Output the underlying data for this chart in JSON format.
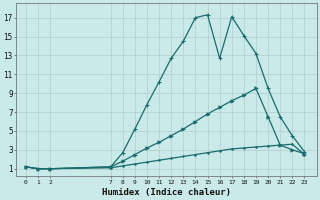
{
  "xlabel": "Humidex (Indice chaleur)",
  "bg_color": "#caeaea",
  "grid_color": "#b8d4d4",
  "line_color": "#1a6b6b",
  "x_ticks": [
    0,
    1,
    2,
    7,
    8,
    9,
    10,
    11,
    12,
    13,
    14,
    15,
    16,
    17,
    18,
    19,
    20,
    21,
    22,
    23
  ],
  "y_ticks": [
    1,
    3,
    5,
    7,
    9,
    11,
    13,
    15,
    17
  ],
  "ylim": [
    0.2,
    18.5
  ],
  "xlim": [
    -0.8,
    24.0
  ],
  "line1_x": [
    0,
    1,
    2,
    7,
    8,
    9,
    10,
    11,
    12,
    13,
    14,
    15,
    16,
    17,
    18,
    19,
    20,
    21,
    22,
    23
  ],
  "line1_y": [
    1.2,
    1.0,
    1.0,
    1.2,
    2.7,
    5.2,
    7.8,
    10.2,
    12.7,
    14.5,
    17.0,
    17.3,
    12.7,
    17.1,
    15.1,
    13.2,
    9.5,
    6.5,
    4.5,
    2.8
  ],
  "line2_x": [
    0,
    1,
    2,
    7,
    8,
    9,
    10,
    11,
    12,
    13,
    14,
    15,
    16,
    17,
    18,
    19,
    20,
    21,
    22,
    23
  ],
  "line2_y": [
    1.2,
    1.0,
    1.0,
    1.2,
    1.8,
    2.5,
    3.2,
    3.8,
    4.5,
    5.2,
    6.0,
    6.8,
    7.5,
    8.2,
    8.8,
    9.5,
    6.5,
    3.5,
    3.0,
    2.6
  ],
  "line3_x": [
    0,
    1,
    2,
    7,
    8,
    9,
    10,
    11,
    12,
    13,
    14,
    15,
    16,
    17,
    18,
    19,
    20,
    21,
    22,
    23
  ],
  "line3_y": [
    1.2,
    1.0,
    1.0,
    1.1,
    1.3,
    1.5,
    1.7,
    1.9,
    2.1,
    2.3,
    2.5,
    2.7,
    2.9,
    3.1,
    3.2,
    3.3,
    3.4,
    3.5,
    3.6,
    2.5
  ]
}
